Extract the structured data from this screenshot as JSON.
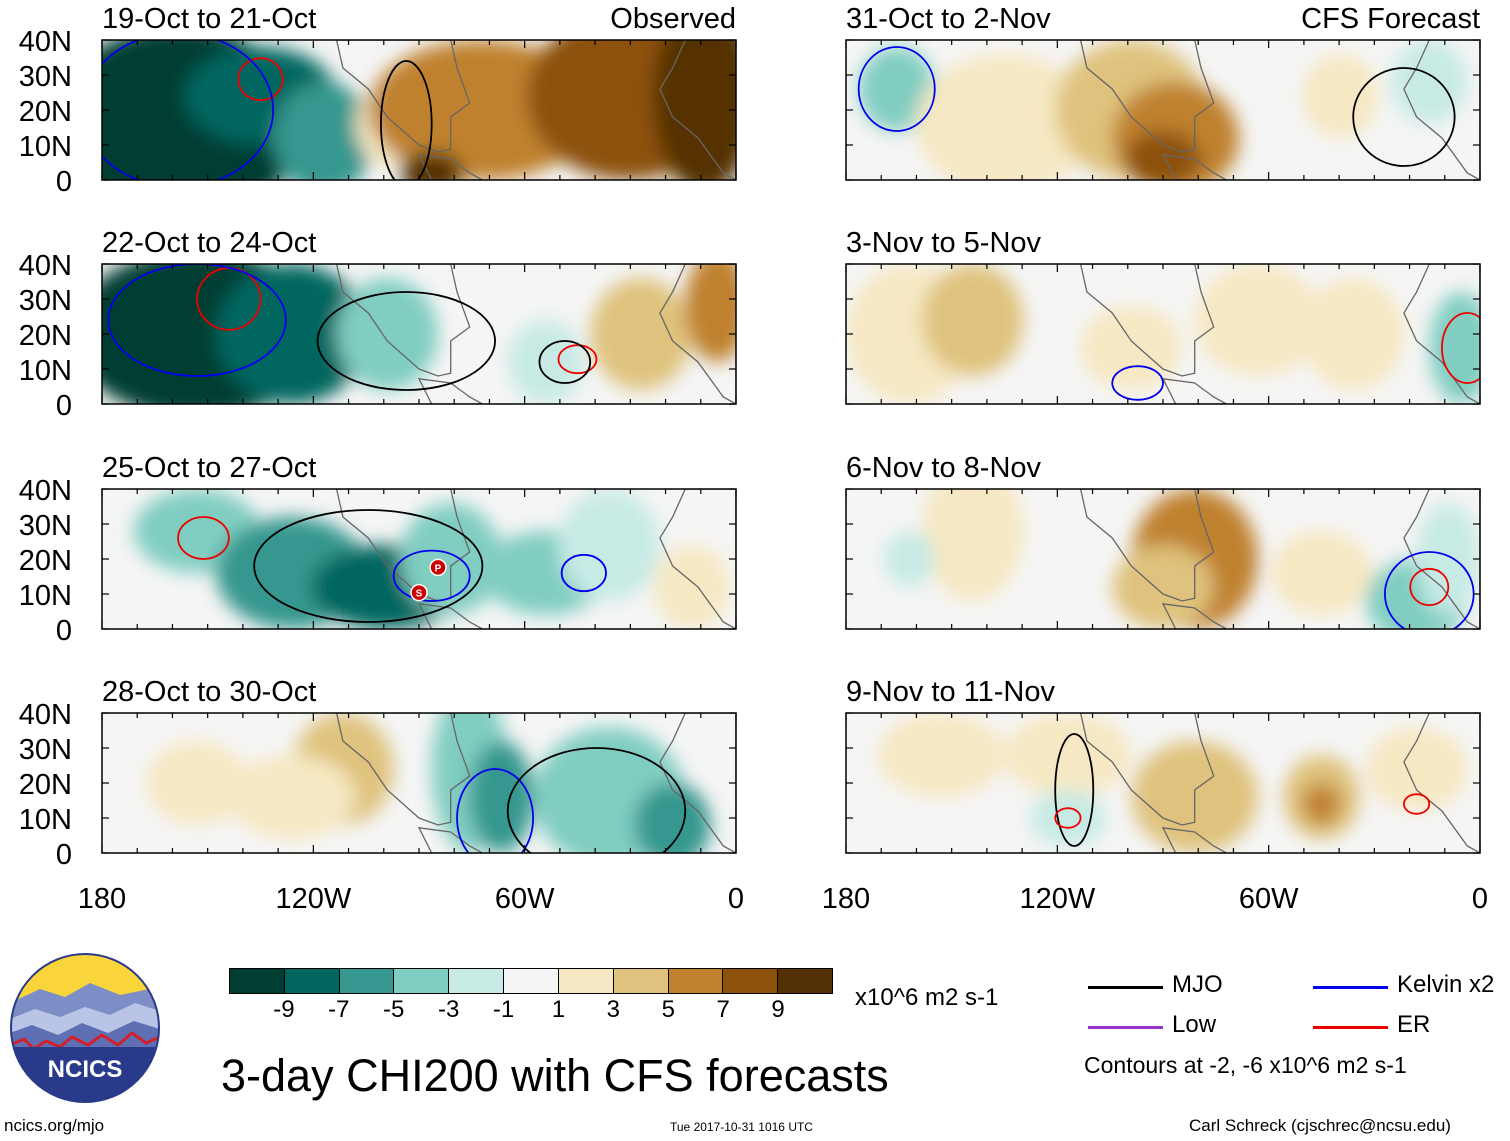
{
  "title": "3-day CHI200 with CFS forecasts",
  "columns": {
    "left_label": "Observed",
    "right_label": "CFS Forecast"
  },
  "panels": {
    "left": [
      {
        "period": "19-Oct to 21-Oct"
      },
      {
        "period": "22-Oct to 24-Oct"
      },
      {
        "period": "25-Oct to 27-Oct"
      },
      {
        "period": "28-Oct to 30-Oct"
      }
    ],
    "right": [
      {
        "period": "31-Oct to 2-Nov"
      },
      {
        "period": "3-Nov to 5-Nov"
      },
      {
        "period": "6-Nov to 8-Nov"
      },
      {
        "period": "9-Nov to 11-Nov"
      }
    ]
  },
  "axes": {
    "lat_ticks": [
      "40N",
      "30N",
      "20N",
      "10N",
      "0"
    ],
    "lon_ticks": [
      "180",
      "120W",
      "60W",
      "0"
    ]
  },
  "colorbar": {
    "units": "x10^6 m2 s-1",
    "labels": [
      "-9",
      "-7",
      "-5",
      "-3",
      "-1",
      "1",
      "3",
      "5",
      "7",
      "9"
    ],
    "colors": [
      "#003d33",
      "#01665e",
      "#35978f",
      "#80cdc1",
      "#c7eae5",
      "#f5f5f5",
      "#f6e8c3",
      "#dfc27d",
      "#bf812d",
      "#8c510a",
      "#543005"
    ]
  },
  "legend": {
    "items": [
      {
        "label": "MJO",
        "color": "#000000"
      },
      {
        "label": "Kelvin x2",
        "color": "#0000ee"
      },
      {
        "label": "Low",
        "color": "#9933cc"
      },
      {
        "label": "ER",
        "color": "#ee0000"
      }
    ],
    "contour_note": "Contours at -2, -6 x10^6 m2 s-1"
  },
  "storm_markers": [
    "P",
    "S"
  ],
  "logo": {
    "text": "NCICS"
  },
  "footer": {
    "url": "ncics.org/mjo",
    "timestamp": "Tue 2017-10-31 1016 UTC",
    "credit": "Carl Schreck (cjschrec@ncsu.edu)"
  }
}
